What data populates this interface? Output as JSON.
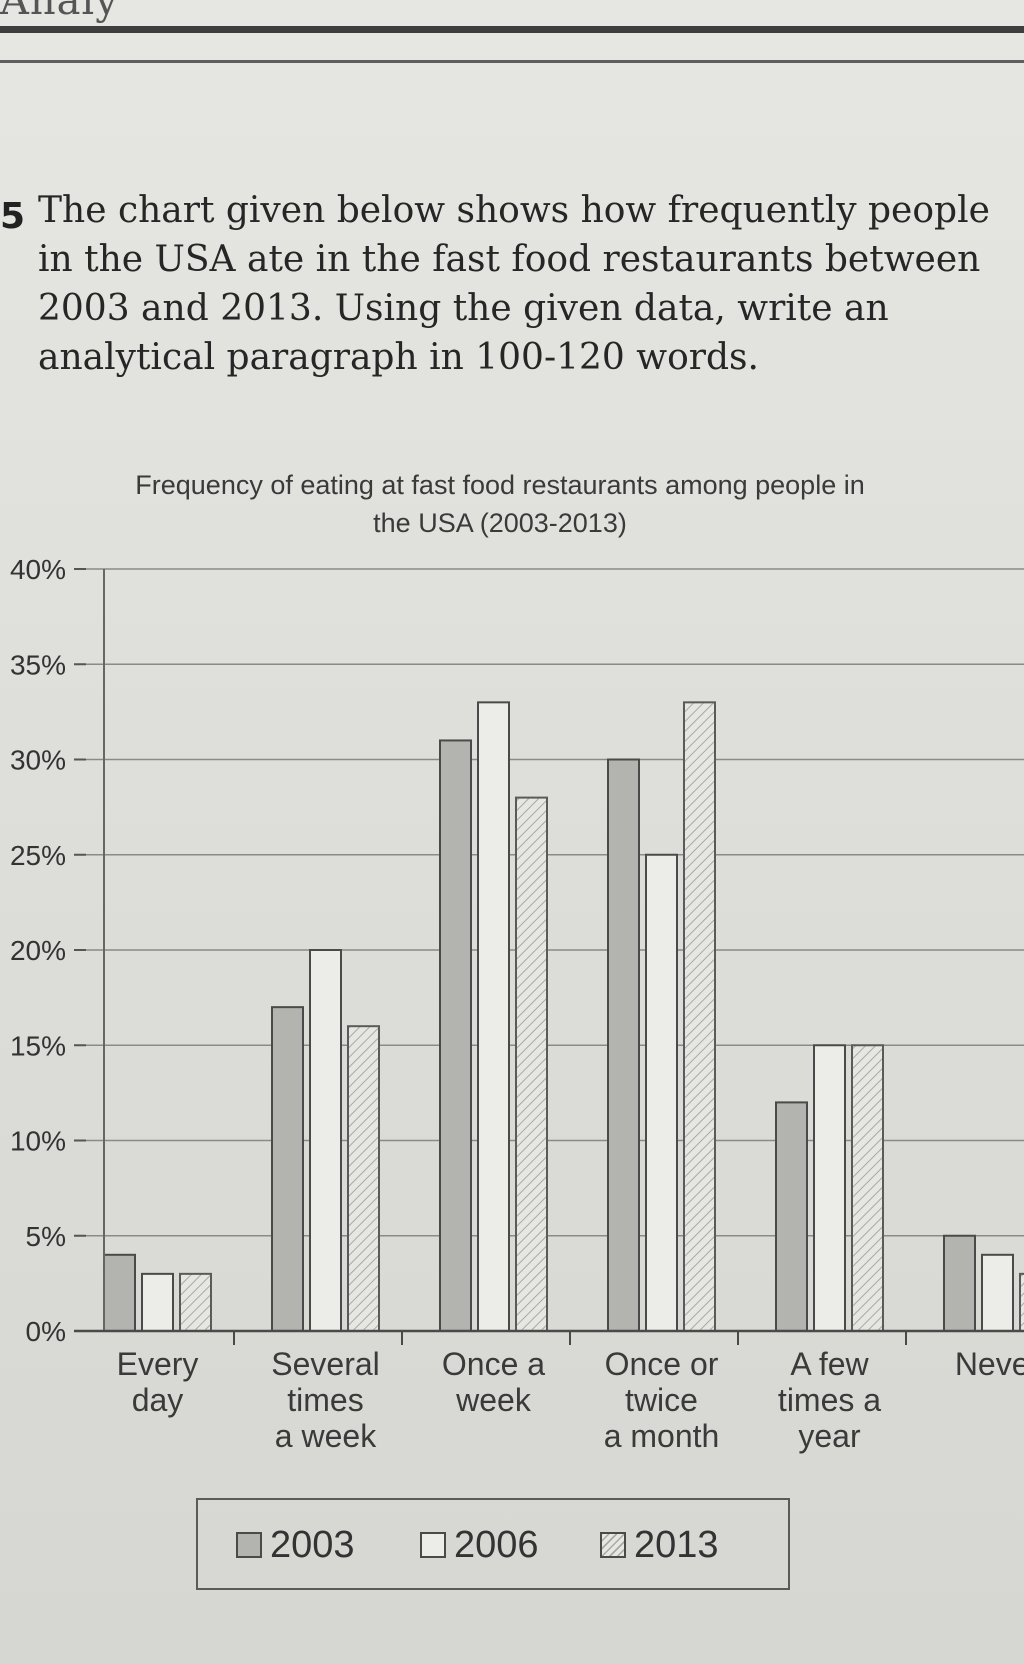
{
  "page": {
    "header_fragment": "Analy",
    "question_number": "5",
    "question_text": "The chart given below shows how frequently people in the USA ate in the fast food restaurants between 2003 and 2013. Using the given data, write an analytical paragraph in 100-120 words."
  },
  "chart_data": {
    "type": "bar",
    "title": "Frequency of eating at fast food restaurants among people in the USA (2003-2013)",
    "xlabel": "",
    "ylabel": "",
    "ylim": [
      0,
      40
    ],
    "yticks": [
      0,
      5,
      10,
      15,
      20,
      25,
      30,
      35,
      40
    ],
    "ytick_labels": [
      "0%",
      "5%",
      "10%",
      "15%",
      "20%",
      "25%",
      "30%",
      "35%",
      "40%"
    ],
    "categories": [
      [
        "Every",
        "day"
      ],
      [
        "Several",
        "times",
        "a week"
      ],
      [
        "Once a",
        "week"
      ],
      [
        "Once or",
        "twice",
        "a month"
      ],
      [
        "A few",
        "times a",
        "year"
      ],
      [
        "Never"
      ]
    ],
    "series": [
      {
        "name": "2003",
        "values": [
          4,
          17,
          31,
          30,
          12,
          5
        ]
      },
      {
        "name": "2006",
        "values": [
          3,
          20,
          33,
          25,
          15,
          4
        ]
      },
      {
        "name": "2013",
        "values": [
          3,
          16,
          28,
          33,
          15,
          3
        ]
      }
    ],
    "grid": true,
    "legend_position": "bottom",
    "colors": {
      "2003": "#b3b3af",
      "2006": "#ecece8",
      "2013_hatch": "#a8a8a4"
    }
  }
}
